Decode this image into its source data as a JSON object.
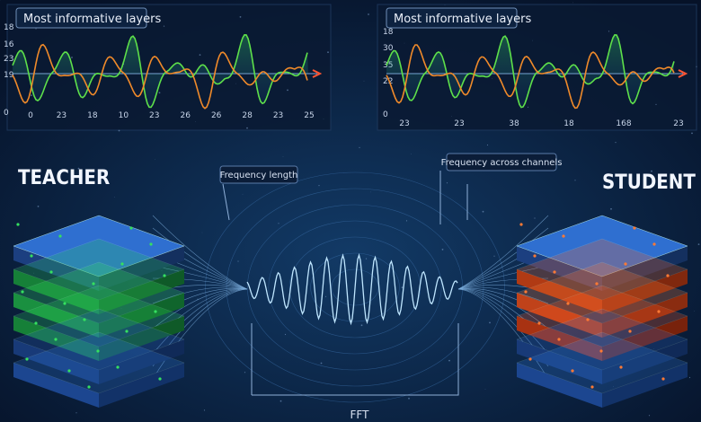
{
  "panels": [
    {
      "title": "Most informative layers",
      "y_labels": [
        "18",
        "16",
        "23",
        "19",
        "0"
      ],
      "x_labels": [
        "0",
        "23",
        "18",
        "10",
        "23",
        "26",
        "26",
        "28",
        "23",
        "25"
      ]
    },
    {
      "title": "Most informative layers",
      "y_labels": [
        "18",
        "30",
        "35",
        "22",
        "0"
      ],
      "x_labels": [
        "23",
        "23",
        "38",
        "18",
        "168",
        "23"
      ]
    }
  ],
  "labels": {
    "teacher": "TEACHER",
    "student": "STUDENT",
    "frequency_length": "Frequency length",
    "frequency_across_channels": "Frequency across channels",
    "fft": "FFT"
  }
}
